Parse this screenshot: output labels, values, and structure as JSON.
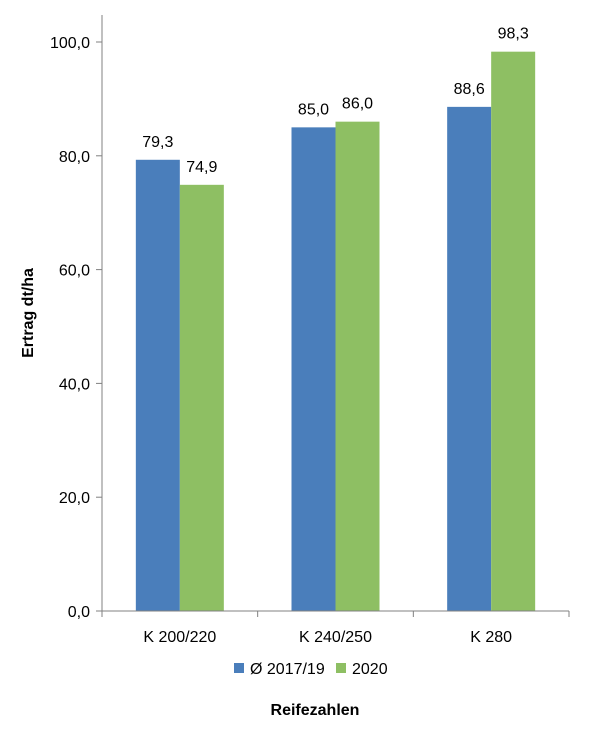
{
  "chart_data": {
    "type": "bar",
    "title": "",
    "ylabel": "Ertrag dt/ha",
    "xlabel": "Reifezahlen",
    "ylim": [
      0,
      100
    ],
    "yticks": [
      "0,0",
      "20,0",
      "40,0",
      "60,0",
      "80,0",
      "100,0"
    ],
    "ytick_values": [
      0,
      20,
      40,
      60,
      80,
      100
    ],
    "categories": [
      "K 200/220",
      "K 240/250",
      "K 280"
    ],
    "series": [
      {
        "name": "Ø 2017/19",
        "color": "#4a7ebb",
        "values": [
          79.3,
          85.0,
          88.6
        ],
        "labels": [
          "79,3",
          "85,0",
          "88,6"
        ]
      },
      {
        "name": "2020",
        "color": "#8ebf63",
        "values": [
          74.9,
          86.0,
          98.3
        ],
        "labels": [
          "74,9",
          "86,0",
          "98,3"
        ]
      }
    ],
    "legend_position": "bottom",
    "grid": false
  }
}
